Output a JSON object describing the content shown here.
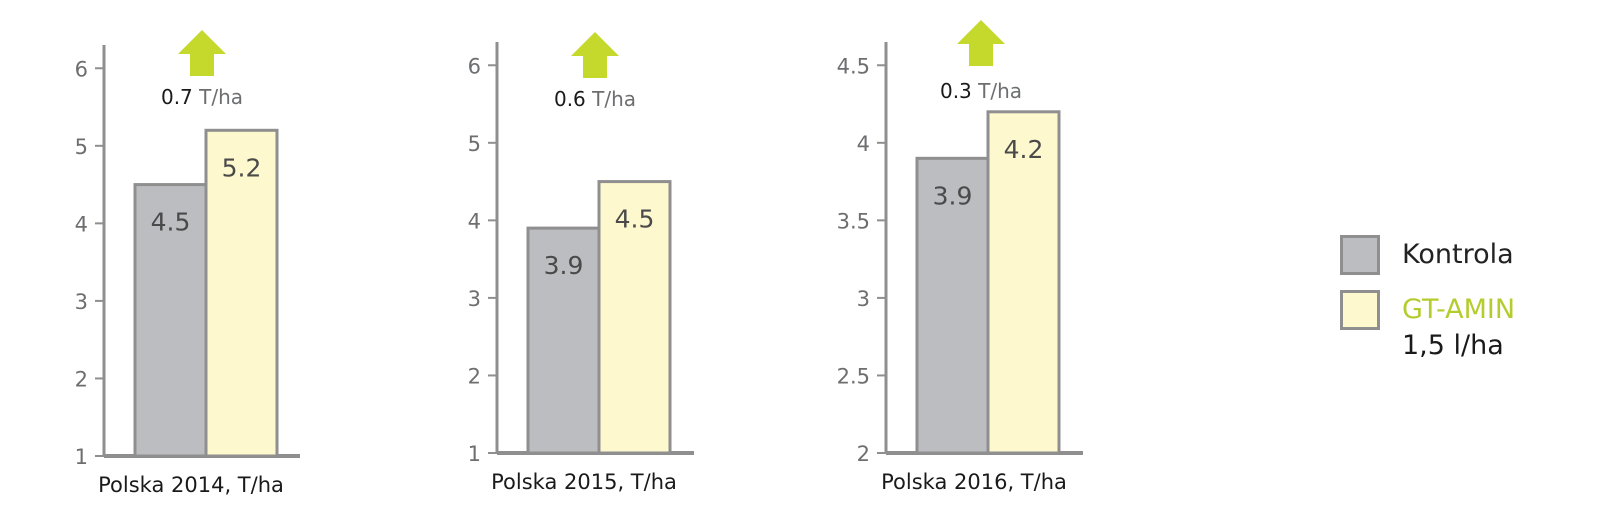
{
  "chart_data": [
    {
      "type": "bar",
      "xlabel": "Polska 2014, T/ha",
      "ylim": [
        1,
        6.3
      ],
      "yticks": [
        "1",
        "2",
        "3",
        "4",
        "5",
        "6"
      ],
      "ytick_values": [
        1,
        2,
        3,
        4,
        5,
        6
      ],
      "series": [
        {
          "name": "Kontrola",
          "values": [
            4.5
          ]
        },
        {
          "name": "GT-AMIN 1,5 l/ha",
          "values": [
            5.2
          ]
        }
      ],
      "data_labels": [
        "4.5",
        "5.2"
      ],
      "annotation": {
        "value": "0.7",
        "unit": "T/ha",
        "arrow": "up-arrow-icon"
      }
    },
    {
      "type": "bar",
      "xlabel": "Polska 2015, T/ha",
      "ylim": [
        1,
        6.3
      ],
      "yticks": [
        "1",
        "2",
        "3",
        "4",
        "5",
        "6"
      ],
      "ytick_values": [
        1,
        2,
        3,
        4,
        5,
        6
      ],
      "series": [
        {
          "name": "Kontrola",
          "values": [
            3.9
          ]
        },
        {
          "name": "GT-AMIN 1,5 l/ha",
          "values": [
            4.5
          ]
        }
      ],
      "data_labels": [
        "3.9",
        "4.5"
      ],
      "annotation": {
        "value": "0.6",
        "unit": "T/ha",
        "arrow": "up-arrow-icon"
      }
    },
    {
      "type": "bar",
      "xlabel": "Polska 2016, T/ha",
      "ylim": [
        2,
        4.65
      ],
      "yticks": [
        "2",
        "2.5",
        "3",
        "3.5",
        "4",
        "4.5"
      ],
      "ytick_values": [
        2,
        2.5,
        3,
        3.5,
        4,
        4.5
      ],
      "series": [
        {
          "name": "Kontrola",
          "values": [
            3.9
          ]
        },
        {
          "name": "GT-AMIN 1,5 l/ha",
          "values": [
            4.2
          ]
        }
      ],
      "data_labels": [
        "3.9",
        "4.2"
      ],
      "annotation": {
        "value": "0.3",
        "unit": "T/ha",
        "arrow": "up-arrow-icon"
      }
    }
  ],
  "legend": {
    "items": [
      {
        "label": "Kontrola",
        "label_line2": "",
        "swatch_color": "#bcbdc0",
        "text_color": "#222222"
      },
      {
        "label": "GT-AMIN",
        "label_line2": "1,5 l/ha",
        "swatch_color": "#fdf8cd",
        "text_color": "#b5cc2e"
      }
    ]
  },
  "colors": {
    "kontrola_fill": "#bcbdc0",
    "gtamin_fill": "#fdf8cd",
    "bar_stroke": "#8f8f8f",
    "axis": "#8f8f8f",
    "arrow": "#c5d92d",
    "tick_text": "#6d6e70",
    "label_text": "#1a1a1a"
  }
}
